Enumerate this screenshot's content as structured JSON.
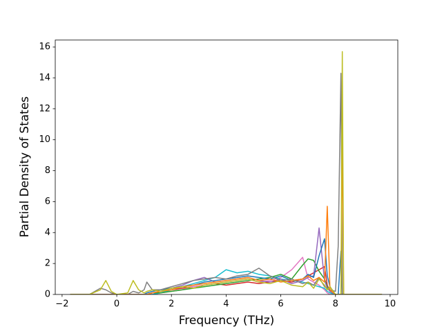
{
  "chart_data": {
    "type": "line",
    "xlabel": "Frequency (THz)",
    "ylabel": "Partial Density of States",
    "xlim": [
      -2.25,
      10.28
    ],
    "ylim": [
      0,
      16.45
    ],
    "xticks": [
      {
        "value": -2,
        "label": "−2"
      },
      0,
      2,
      4,
      6,
      8,
      10
    ],
    "yticks": [
      0,
      2,
      4,
      6,
      8,
      10,
      12,
      14,
      16
    ],
    "x": [
      -1.7,
      -1,
      -0.6,
      -0.4,
      -0.2,
      0,
      0.4,
      0.6,
      0.8,
      1.0,
      1.1,
      1.3,
      1.6,
      2,
      2.4,
      2.8,
      3.2,
      3.6,
      4,
      4.4,
      4.8,
      5.2,
      5.6,
      6,
      6.4,
      6.8,
      7,
      7.2,
      7.4,
      7.6,
      7.7,
      7.8,
      8.0,
      8.1,
      8.2,
      8.25,
      8.3,
      8.5,
      9,
      9.7
    ],
    "series": [
      {
        "color": "#d62728",
        "values": [
          0,
          0,
          0,
          0,
          0,
          0,
          0,
          0,
          0,
          0,
          0,
          0.1,
          0.2,
          0.3,
          0.4,
          0.5,
          0.6,
          0.7,
          0.6,
          0.7,
          0.8,
          0.7,
          0.8,
          0.9,
          0.8,
          1.0,
          1.2,
          1.4,
          1.6,
          1.8,
          0.6,
          0.2,
          0,
          0,
          0,
          0,
          0,
          0,
          0,
          0
        ]
      },
      {
        "color": "#e377c2",
        "values": [
          0,
          0,
          0,
          0,
          0,
          0,
          0,
          0,
          0,
          0,
          0,
          0,
          0.1,
          0.2,
          0.3,
          0.5,
          0.6,
          0.7,
          0.8,
          0.9,
          1.0,
          0.8,
          0.9,
          1.1,
          1.6,
          2.4,
          1.0,
          0.8,
          0.6,
          0.3,
          0.1,
          0,
          0,
          0,
          0,
          0,
          0,
          0,
          0,
          0
        ]
      },
      {
        "color": "#17becf",
        "values": [
          0,
          0,
          0,
          0,
          0,
          0,
          0,
          0,
          0,
          0,
          0,
          0,
          0.1,
          0.3,
          0.5,
          0.7,
          0.9,
          1.1,
          1.6,
          1.4,
          1.5,
          1.3,
          1.2,
          1.0,
          0.9,
          0.8,
          0.7,
          0.6,
          0.5,
          0.4,
          0.2,
          0.1,
          0,
          0,
          0,
          0,
          0,
          0,
          0,
          0
        ]
      },
      {
        "color": "#2ca02c",
        "values": [
          0,
          0,
          0,
          0,
          0,
          0,
          0,
          0,
          0,
          0,
          0,
          0.1,
          0.1,
          0.2,
          0.3,
          0.4,
          0.5,
          0.6,
          0.7,
          0.8,
          0.9,
          1.0,
          1.1,
          1.3,
          1.0,
          1.9,
          2.3,
          2.2,
          1.5,
          1.0,
          0.5,
          0.2,
          0,
          0,
          0,
          0,
          0,
          0,
          0,
          0
        ]
      },
      {
        "color": "#9467bd",
        "values": [
          0,
          0,
          0,
          0,
          0,
          0,
          0,
          0,
          0,
          0,
          0,
          0.1,
          0.2,
          0.4,
          0.6,
          0.9,
          1.1,
          0.8,
          0.9,
          1.0,
          1.1,
          0.9,
          0.8,
          1.0,
          0.7,
          0.9,
          1.1,
          1.2,
          4.3,
          0.9,
          0.4,
          0.2,
          0,
          0,
          0,
          0,
          0,
          0,
          0,
          0
        ]
      },
      {
        "color": "#1f77b4",
        "values": [
          0,
          0,
          0,
          0,
          0,
          0,
          0,
          0,
          0,
          0,
          0.1,
          0.2,
          0.3,
          0.4,
          0.5,
          0.6,
          0.8,
          0.9,
          1.0,
          1.1,
          1.2,
          1.1,
          1.0,
          1.2,
          0.9,
          1.0,
          1.3,
          1.1,
          2.5,
          3.6,
          1.2,
          0.5,
          0,
          0,
          2.8,
          0,
          0,
          0,
          0,
          0
        ]
      },
      {
        "color": "#7f7f7f",
        "values": [
          0,
          0,
          0.4,
          0.3,
          0.1,
          0,
          0,
          0.2,
          0.1,
          0.3,
          0.8,
          0.3,
          0.3,
          0.5,
          0.7,
          0.9,
          1.0,
          1.1,
          1.0,
          1.2,
          1.3,
          1.7,
          1.2,
          0.9,
          1.0,
          0.7,
          0.8,
          0.6,
          1.1,
          0.5,
          0.4,
          0.3,
          0.2,
          3.1,
          14.3,
          0,
          0,
          0,
          0,
          0
        ]
      },
      {
        "color": "#ff7f0e",
        "values": [
          0,
          0,
          0,
          0,
          0,
          0,
          0,
          0,
          0,
          0,
          0,
          0.1,
          0.2,
          0.3,
          0.5,
          0.6,
          0.7,
          0.8,
          0.9,
          1.0,
          1.1,
          0.9,
          1.0,
          0.8,
          0.9,
          1.0,
          1.2,
          0.9,
          1.1,
          0.8,
          5.7,
          0.3,
          0,
          0,
          0,
          10.3,
          0,
          0,
          0,
          0
        ]
      },
      {
        "color": "#bcbd22",
        "values": [
          0,
          0,
          0.3,
          0.9,
          0.2,
          0,
          0.1,
          0.9,
          0.3,
          0.1,
          0.2,
          0.3,
          0.2,
          0.4,
          0.5,
          0.4,
          0.6,
          0.7,
          0.8,
          0.9,
          1.0,
          0.8,
          0.7,
          0.9,
          0.6,
          0.5,
          0.8,
          0.4,
          1.0,
          0.6,
          0.3,
          0.5,
          0,
          0,
          0,
          15.7,
          0,
          0,
          0,
          0
        ]
      }
    ]
  }
}
